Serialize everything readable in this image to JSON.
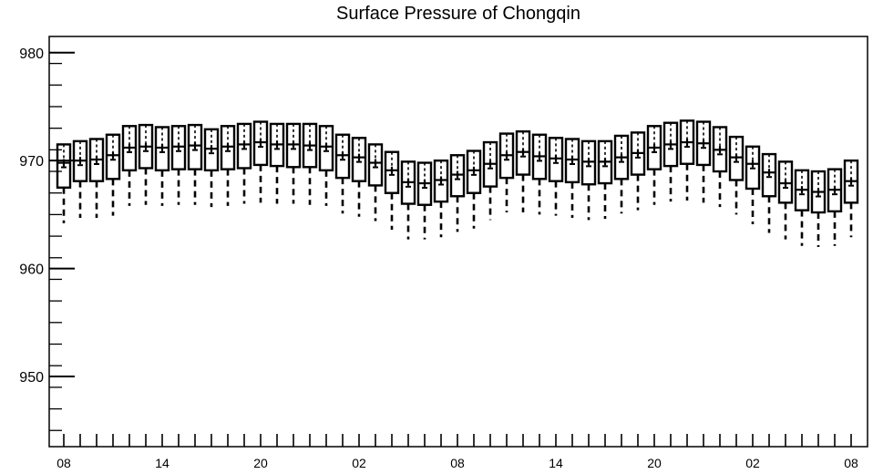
{
  "chart_data": {
    "type": "box",
    "title": "Surface Pressure of Chongqin",
    "xlabel": "",
    "ylabel": "",
    "ylim": [
      943.5,
      981.5
    ],
    "yticks": [
      950,
      960,
      970,
      980
    ],
    "x_tick_labels": [
      "08",
      "14",
      "20",
      "02",
      "08",
      "14",
      "20",
      "02",
      "08"
    ],
    "x_tick_positions": [
      0,
      6,
      12,
      18,
      24,
      30,
      36,
      42,
      48
    ],
    "series": [
      {
        "median": [
          969.8,
          970.0,
          970.1,
          970.5,
          971.2,
          971.3,
          971.2,
          971.3,
          971.4,
          971.1,
          971.3,
          971.5,
          971.7,
          971.5,
          971.5,
          971.4,
          971.3,
          970.5,
          970.3,
          969.8,
          969.1,
          968.0,
          967.9,
          968.2,
          968.7,
          969.1,
          969.7,
          970.5,
          970.8,
          970.4,
          970.2,
          970.1,
          969.9,
          969.9,
          970.3,
          970.7,
          971.2,
          971.5,
          971.7,
          971.6,
          971.0,
          970.3,
          969.7,
          968.9,
          967.9,
          967.3,
          967.1,
          967.3,
          968.1
        ],
        "q1": [
          967.5,
          968.1,
          968.1,
          968.3,
          969.1,
          969.3,
          969.1,
          969.2,
          969.2,
          969.1,
          969.2,
          969.3,
          969.6,
          969.5,
          969.4,
          969.4,
          969.1,
          968.4,
          968.1,
          967.7,
          967.0,
          966.0,
          965.9,
          966.2,
          966.7,
          967.0,
          967.6,
          968.4,
          968.7,
          968.3,
          968.1,
          968.0,
          967.8,
          967.9,
          968.3,
          968.7,
          969.2,
          969.5,
          969.7,
          969.6,
          969.0,
          968.2,
          967.4,
          966.7,
          966.1,
          965.4,
          965.2,
          965.3,
          966.1
        ],
        "q3": [
          971.5,
          971.8,
          972.0,
          972.4,
          973.2,
          973.3,
          973.1,
          973.2,
          973.3,
          972.9,
          973.2,
          973.4,
          973.6,
          973.4,
          973.4,
          973.4,
          973.2,
          972.4,
          972.1,
          971.5,
          970.8,
          969.9,
          969.8,
          970.0,
          970.5,
          970.9,
          971.7,
          972.5,
          972.7,
          972.4,
          972.1,
          972.0,
          971.8,
          971.8,
          972.3,
          972.6,
          973.2,
          973.5,
          973.7,
          973.6,
          973.1,
          972.2,
          971.3,
          970.6,
          969.9,
          969.1,
          969.0,
          969.2,
          970.0
        ],
        "whisker_low": [
          964.2,
          964.7,
          964.7,
          964.9,
          965.8,
          965.9,
          965.8,
          965.9,
          965.9,
          965.7,
          965.8,
          966.0,
          966.1,
          966.0,
          966.0,
          965.9,
          965.8,
          965.1,
          964.8,
          964.4,
          963.6,
          962.7,
          962.7,
          962.9,
          963.4,
          963.7,
          964.5,
          965.2,
          965.2,
          965.0,
          964.9,
          964.7,
          964.5,
          964.6,
          965.1,
          965.4,
          965.9,
          966.2,
          966.3,
          966.1,
          965.7,
          965.0,
          964.1,
          963.3,
          962.7,
          962.1,
          962.0,
          962.1,
          962.9
        ],
        "whisker_high": [
          971.5,
          971.8,
          972.0,
          972.4,
          973.2,
          973.3,
          973.1,
          973.2,
          973.3,
          972.9,
          973.2,
          973.4,
          973.6,
          973.4,
          973.4,
          973.4,
          973.2,
          972.4,
          972.1,
          971.5,
          970.8,
          969.9,
          969.8,
          970.0,
          970.5,
          970.9,
          971.7,
          972.5,
          972.7,
          972.4,
          972.1,
          972.0,
          971.8,
          971.8,
          972.3,
          972.6,
          973.2,
          973.5,
          973.7,
          973.6,
          973.1,
          972.2,
          971.3,
          970.6,
          969.9,
          969.1,
          969.0,
          969.2,
          970.0
        ]
      }
    ],
    "grid": false,
    "legend": "none"
  }
}
